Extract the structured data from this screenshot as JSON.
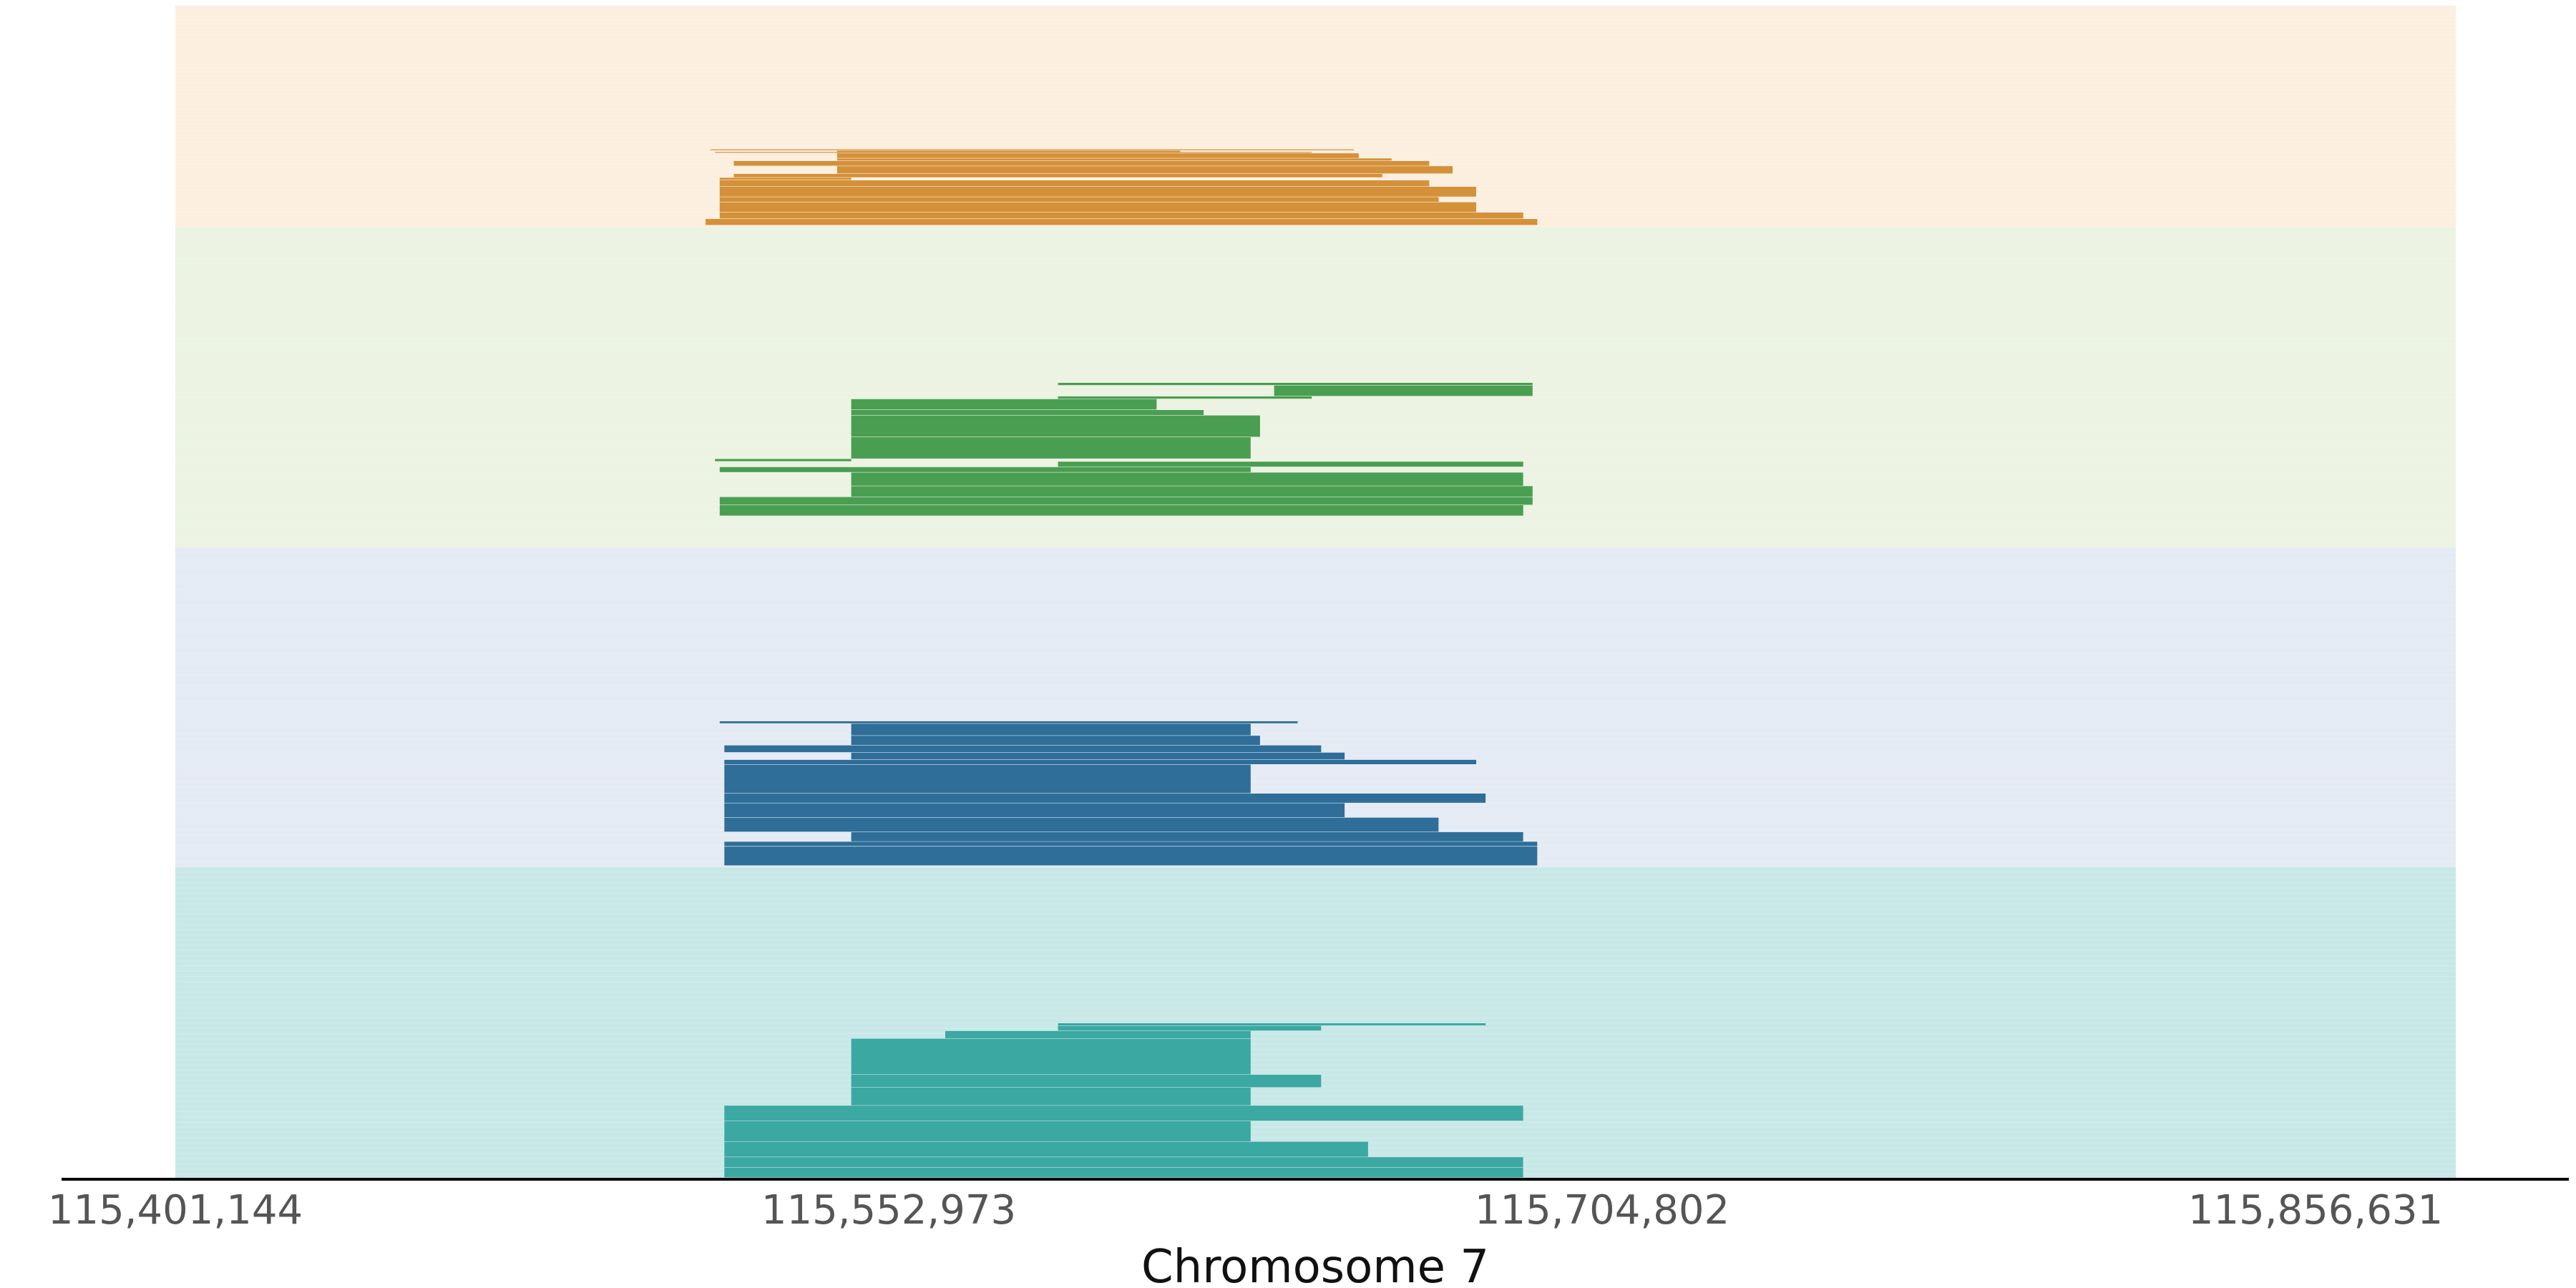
{
  "chart_data": {
    "type": "bar",
    "orientation": "horizontal-intervals",
    "title": "",
    "xlabel": "Chromosome 7",
    "ylabel": "",
    "xlim": [
      115401144,
      116040000
    ],
    "x_ticks": [
      115401144,
      115552973,
      115704802,
      115856631
    ],
    "x_tick_labels": [
      "115,401,144",
      "115,552,973",
      "115,704,802",
      "115,856,631"
    ],
    "grid": false,
    "legend": "none",
    "groups": [
      {
        "color": "#d4913a",
        "background": "#fcefdf",
        "rows": 60,
        "intervals": [
          {
            "start": 115515000,
            "end": 115652000,
            "rows": [
              1,
              2
            ]
          },
          {
            "start": 115542000,
            "end": 115615000,
            "rows": [
              2,
              4
            ]
          },
          {
            "start": 115516000,
            "end": 115643000,
            "rows": [
              3,
              4
            ]
          },
          {
            "start": 115542000,
            "end": 115653000,
            "rows": [
              4,
              8
            ]
          },
          {
            "start": 115542000,
            "end": 115660000,
            "rows": [
              8,
              10
            ]
          },
          {
            "start": 115520000,
            "end": 115668000,
            "rows": [
              10,
              14
            ]
          },
          {
            "start": 115542000,
            "end": 115673000,
            "rows": [
              14,
              20
            ]
          },
          {
            "start": 115520000,
            "end": 115658000,
            "rows": [
              20,
              23
            ]
          },
          {
            "start": 115517000,
            "end": 115545000,
            "rows": [
              23,
              25
            ]
          },
          {
            "start": 115517000,
            "end": 115668000,
            "rows": [
              25,
              30
            ]
          },
          {
            "start": 115517000,
            "end": 115678000,
            "rows": [
              30,
              38
            ]
          },
          {
            "start": 115517000,
            "end": 115670000,
            "rows": [
              38,
              42
            ]
          },
          {
            "start": 115517000,
            "end": 115678000,
            "rows": [
              42,
              50
            ]
          },
          {
            "start": 115517000,
            "end": 115688000,
            "rows": [
              50,
              55
            ]
          },
          {
            "start": 115514000,
            "end": 115691000,
            "rows": [
              55,
              60
            ]
          }
        ]
      },
      {
        "color": "#4a9e52",
        "background": "#ecf3e2",
        "rows": 60,
        "intervals": [
          {
            "start": 115589000,
            "end": 115690000,
            "rows": [
              0,
              1
            ]
          },
          {
            "start": 115635000,
            "end": 115690000,
            "rows": [
              1,
              5
            ]
          },
          {
            "start": 115589000,
            "end": 115643000,
            "rows": [
              5,
              6
            ]
          },
          {
            "start": 115545000,
            "end": 115610000,
            "rows": [
              6,
              10
            ]
          },
          {
            "start": 115545000,
            "end": 115620000,
            "rows": [
              10,
              12
            ]
          },
          {
            "start": 115545000,
            "end": 115632000,
            "rows": [
              12,
              20
            ]
          },
          {
            "start": 115545000,
            "end": 115630000,
            "rows": [
              20,
              28
            ]
          },
          {
            "start": 115516000,
            "end": 115545000,
            "rows": [
              28,
              29
            ]
          },
          {
            "start": 115589000,
            "end": 115688000,
            "rows": [
              29,
              31
            ]
          },
          {
            "start": 115517000,
            "end": 115630000,
            "rows": [
              31,
              33
            ]
          },
          {
            "start": 115545000,
            "end": 115688000,
            "rows": [
              33,
              38
            ]
          },
          {
            "start": 115545000,
            "end": 115690000,
            "rows": [
              38,
              42
            ]
          },
          {
            "start": 115517000,
            "end": 115690000,
            "rows": [
              42,
              45
            ]
          },
          {
            "start": 115517000,
            "end": 115688000,
            "rows": [
              45,
              49
            ]
          }
        ]
      },
      {
        "color": "#2e6e99",
        "background": "#e4ebf4",
        "rows": 60,
        "intervals": [
          {
            "start": 115517000,
            "end": 115640000,
            "rows": [
              0,
              1
            ]
          },
          {
            "start": 115545000,
            "end": 115630000,
            "rows": [
              1,
              6
            ]
          },
          {
            "start": 115545000,
            "end": 115632000,
            "rows": [
              6,
              10
            ]
          },
          {
            "start": 115518000,
            "end": 115645000,
            "rows": [
              10,
              13
            ]
          },
          {
            "start": 115545000,
            "end": 115650000,
            "rows": [
              13,
              16
            ]
          },
          {
            "start": 115518000,
            "end": 115678000,
            "rows": [
              16,
              18
            ]
          },
          {
            "start": 115518000,
            "end": 115630000,
            "rows": [
              18,
              30
            ]
          },
          {
            "start": 115518000,
            "end": 115680000,
            "rows": [
              30,
              34
            ]
          },
          {
            "start": 115518000,
            "end": 115650000,
            "rows": [
              34,
              40
            ]
          },
          {
            "start": 115518000,
            "end": 115670000,
            "rows": [
              40,
              46
            ]
          },
          {
            "start": 115545000,
            "end": 115688000,
            "rows": [
              46,
              50
            ]
          },
          {
            "start": 115518000,
            "end": 115691000,
            "rows": [
              50,
              52
            ]
          },
          {
            "start": 115518000,
            "end": 115691000,
            "rows": [
              52,
              60
            ]
          }
        ]
      },
      {
        "color": "#3ba8a2",
        "background": "#c8e8e8",
        "rows": 60,
        "intervals": [
          {
            "start": 115589000,
            "end": 115680000,
            "rows": [
              0,
              1
            ]
          },
          {
            "start": 115589000,
            "end": 115645000,
            "rows": [
              1,
              3
            ]
          },
          {
            "start": 115565000,
            "end": 115630000,
            "rows": [
              3,
              6
            ]
          },
          {
            "start": 115545000,
            "end": 115630000,
            "rows": [
              6,
              20
            ]
          },
          {
            "start": 115545000,
            "end": 115645000,
            "rows": [
              20,
              25
            ]
          },
          {
            "start": 115545000,
            "end": 115630000,
            "rows": [
              25,
              32
            ]
          },
          {
            "start": 115518000,
            "end": 115688000,
            "rows": [
              32,
              38
            ]
          },
          {
            "start": 115518000,
            "end": 115630000,
            "rows": [
              38,
              46
            ]
          },
          {
            "start": 115518000,
            "end": 115655000,
            "rows": [
              46,
              52
            ]
          },
          {
            "start": 115518000,
            "end": 115688000,
            "rows": [
              52,
              56
            ]
          },
          {
            "start": 115518000,
            "end": 115688000,
            "rows": [
              56,
              60
            ]
          }
        ]
      }
    ]
  }
}
